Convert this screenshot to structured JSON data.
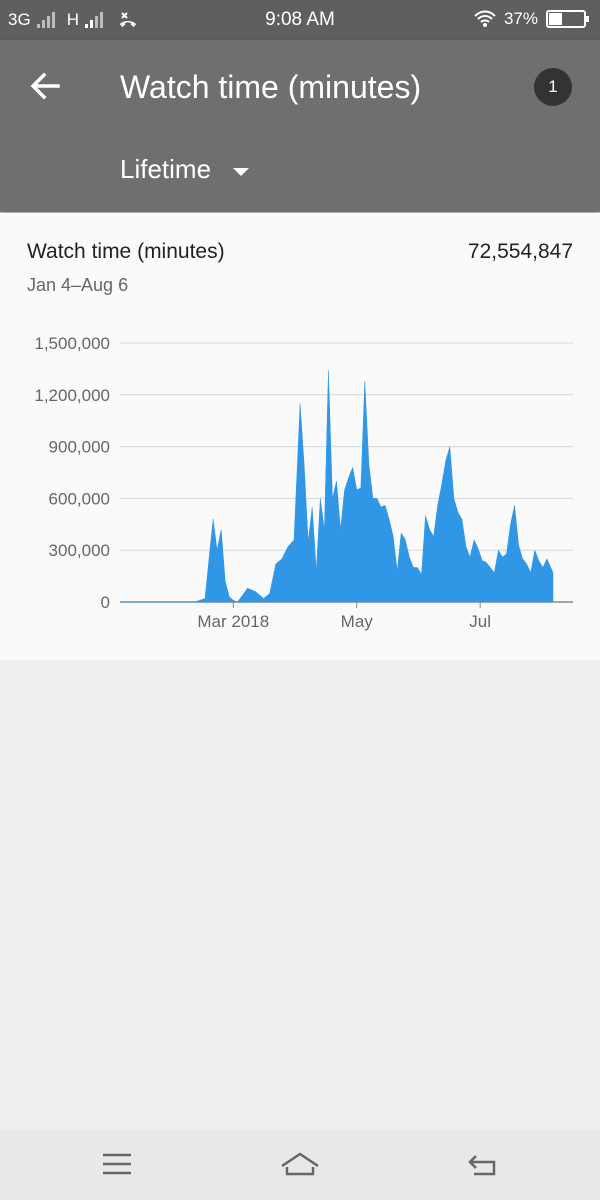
{
  "status_bar": {
    "network_1": "3G",
    "network_2": "H",
    "time": "9:08 AM",
    "battery": "37%"
  },
  "app_bar": {
    "title": "Watch time (minutes)",
    "badge": "1",
    "period": "Lifetime",
    "color": "#6f6f6f"
  },
  "card": {
    "title": "Watch time (minutes)",
    "total": "72,554,847",
    "date_range": "Jan 4–Aug 6"
  },
  "chart_data": {
    "type": "area",
    "color": "#2f97e6",
    "y_ticks": [
      "1,500,000",
      "1,200,000",
      "900,000",
      "600,000",
      "300,000",
      "0"
    ],
    "y_tick_values": [
      1500000,
      1200000,
      900000,
      600000,
      300000,
      0
    ],
    "ylim": [
      0,
      1500000
    ],
    "x_tick_labels": [
      {
        "label": "Mar 2018",
        "date": "2018-03-01"
      },
      {
        "label": "May",
        "date": "2018-05-01"
      },
      {
        "label": "Jul",
        "date": "2018-07-01"
      }
    ],
    "x_range": [
      "2018-01-04",
      "2018-08-06"
    ],
    "grid": true,
    "x": [
      "2018-01-04",
      "2018-02-01",
      "2018-02-10",
      "2018-02-15",
      "2018-02-17",
      "2018-02-19",
      "2018-02-21",
      "2018-02-23",
      "2018-02-25",
      "2018-02-27",
      "2018-03-01",
      "2018-03-03",
      "2018-03-05",
      "2018-03-08",
      "2018-03-12",
      "2018-03-16",
      "2018-03-19",
      "2018-03-22",
      "2018-03-25",
      "2018-03-28",
      "2018-03-31",
      "2018-04-03",
      "2018-04-05",
      "2018-04-07",
      "2018-04-09",
      "2018-04-11",
      "2018-04-13",
      "2018-04-15",
      "2018-04-17",
      "2018-04-19",
      "2018-04-21",
      "2018-04-23",
      "2018-04-25",
      "2018-04-27",
      "2018-04-29",
      "2018-05-01",
      "2018-05-03",
      "2018-05-05",
      "2018-05-07",
      "2018-05-09",
      "2018-05-11",
      "2018-05-13",
      "2018-05-15",
      "2018-05-17",
      "2018-05-19",
      "2018-05-21",
      "2018-05-23",
      "2018-05-25",
      "2018-05-27",
      "2018-05-29",
      "2018-05-31",
      "2018-06-02",
      "2018-06-04",
      "2018-06-06",
      "2018-06-08",
      "2018-06-10",
      "2018-06-12",
      "2018-06-14",
      "2018-06-16",
      "2018-06-18",
      "2018-06-20",
      "2018-06-22",
      "2018-06-24",
      "2018-06-26",
      "2018-06-28",
      "2018-06-30",
      "2018-07-02",
      "2018-07-04",
      "2018-07-06",
      "2018-07-08",
      "2018-07-10",
      "2018-07-12",
      "2018-07-14",
      "2018-07-16",
      "2018-07-18",
      "2018-07-20",
      "2018-07-22",
      "2018-07-24",
      "2018-07-26",
      "2018-07-28",
      "2018-07-30",
      "2018-08-01",
      "2018-08-03",
      "2018-08-06"
    ],
    "values": [
      0,
      0,
      0,
      20000,
      250000,
      480000,
      300000,
      420000,
      120000,
      30000,
      10000,
      0,
      30000,
      80000,
      60000,
      20000,
      50000,
      220000,
      250000,
      320000,
      360000,
      1150000,
      800000,
      350000,
      550000,
      180000,
      600000,
      420000,
      1340000,
      600000,
      700000,
      420000,
      650000,
      720000,
      780000,
      650000,
      660000,
      1280000,
      800000,
      600000,
      600000,
      550000,
      560000,
      480000,
      380000,
      180000,
      400000,
      360000,
      260000,
      200000,
      200000,
      160000,
      500000,
      420000,
      380000,
      560000,
      680000,
      820000,
      900000,
      600000,
      520000,
      480000,
      320000,
      260000,
      360000,
      310000,
      240000,
      230000,
      200000,
      170000,
      300000,
      260000,
      280000,
      450000,
      560000,
      330000,
      250000,
      220000,
      170000,
      300000,
      240000,
      200000,
      250000,
      170000
    ]
  },
  "nav_bar": {
    "menu": "menu-icon",
    "home": "home-icon",
    "back": "back-icon"
  }
}
